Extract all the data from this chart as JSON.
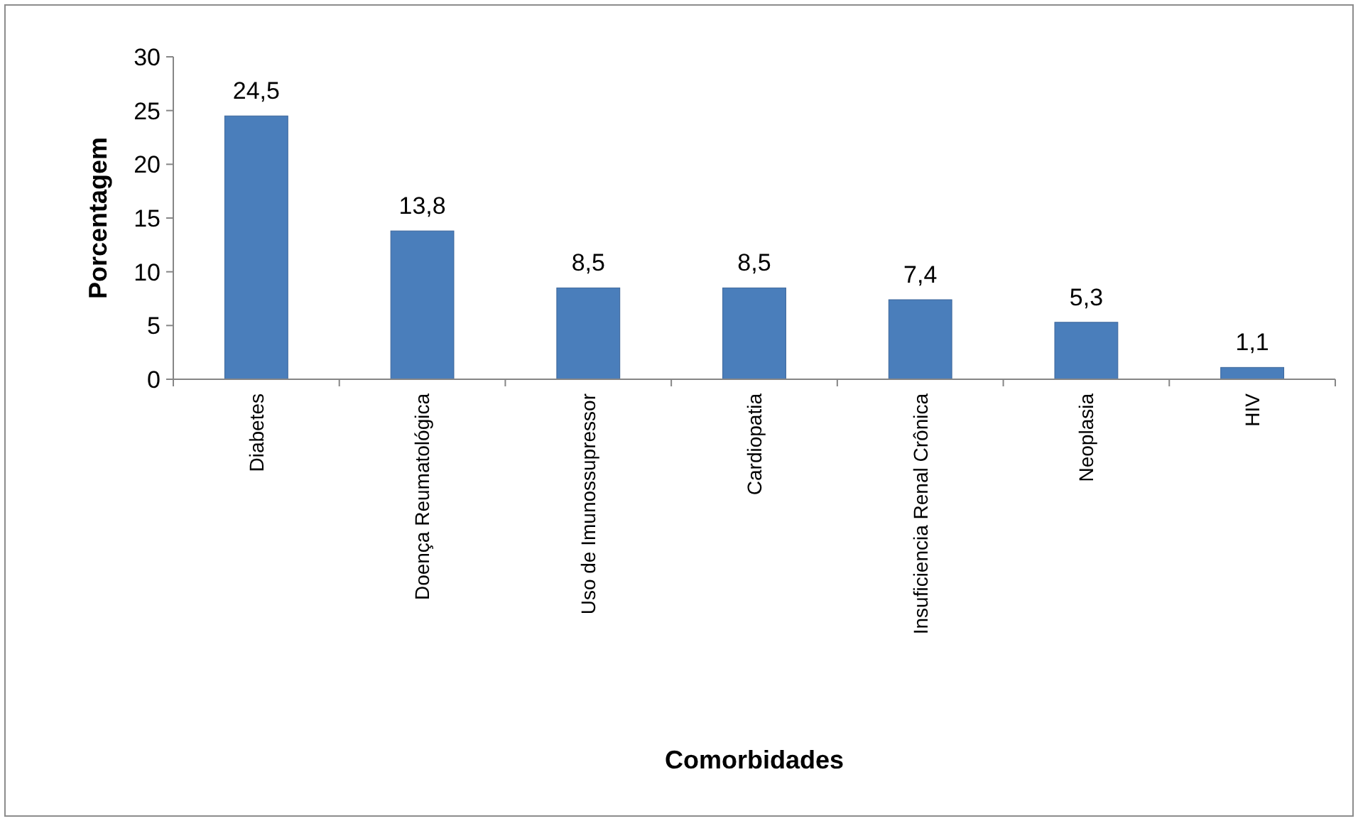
{
  "chart_data": {
    "type": "bar",
    "xlabel": "Comorbidades",
    "ylabel": "Porcentagem",
    "categories": [
      "Diabetes",
      "Doença Reumatológica",
      "Uso de Imunossupressor",
      "Cardiopatia",
      "Insuficiencia Renal Crônica",
      "Neoplasia",
      "HIV"
    ],
    "values": [
      24.5,
      13.8,
      8.5,
      8.5,
      7.4,
      5.3,
      1.1
    ],
    "value_labels": [
      "24,5",
      "13,8",
      "8,5",
      "8,5",
      "7,4",
      "5,3",
      "1,1"
    ],
    "color": "#4a7ebb",
    "ylim": [
      0,
      30
    ],
    "yticks": [
      0,
      5,
      10,
      15,
      20,
      25,
      30
    ],
    "grid": false
  }
}
